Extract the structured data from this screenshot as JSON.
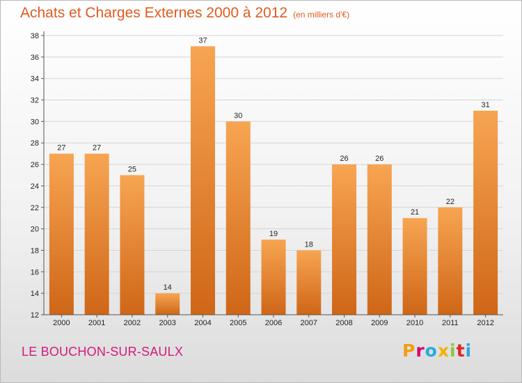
{
  "header": {
    "title": "Achats et Charges Externes 2000 à 2012",
    "unit": "(en milliers d'€)"
  },
  "footer": {
    "town": "LE BOUCHON-SUR-SAULX",
    "brand": "Proxiti",
    "brand_colors": [
      "#f39c12",
      "#d6006f",
      "#27a9e1",
      "#f7b000",
      "#8cc63f",
      "#e0242b",
      "#27a9e1"
    ]
  },
  "chart_data": {
    "type": "bar",
    "categories": [
      "2000",
      "2001",
      "2002",
      "2003",
      "2004",
      "2005",
      "2006",
      "2007",
      "2008",
      "2009",
      "2010",
      "2011",
      "2012"
    ],
    "values": [
      27,
      27,
      25,
      14,
      37,
      30,
      19,
      18,
      26,
      26,
      21,
      22,
      31
    ],
    "ylim": [
      12,
      38
    ],
    "yticks": [
      12,
      14,
      16,
      18,
      20,
      22,
      24,
      26,
      28,
      30,
      32,
      34,
      36,
      38
    ],
    "grid": true,
    "bar_color_top": "#f7a552",
    "bar_color_bottom": "#cf6617"
  }
}
